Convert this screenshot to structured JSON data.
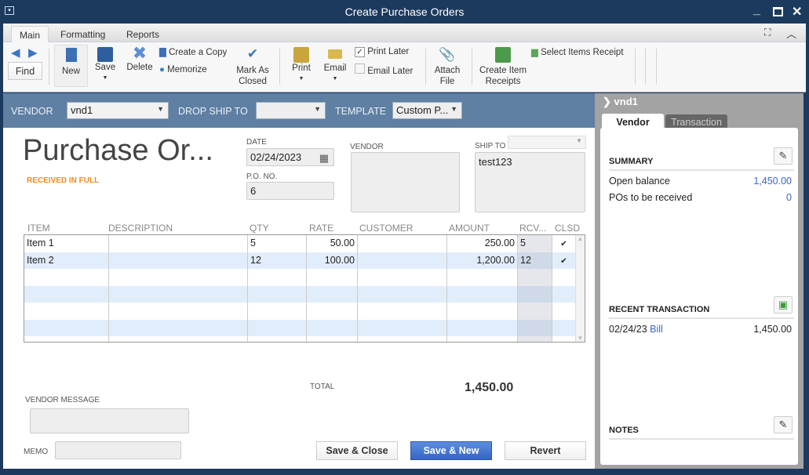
{
  "window": {
    "title": "Create Purchase Orders",
    "menu_icon": "window-menu-icon",
    "controls": [
      "minimize",
      "maximize",
      "close"
    ]
  },
  "tabs": [
    {
      "label": "Main",
      "active": true
    },
    {
      "label": "Formatting"
    },
    {
      "label": "Reports"
    }
  ],
  "toolbar": {
    "find": "Find",
    "new": "New",
    "save": "Save",
    "delete": "Delete",
    "create_copy": "Create a Copy",
    "memorize": "Memorize",
    "mark_closed_1": "Mark As",
    "mark_closed_2": "Closed",
    "print": "Print",
    "email": "Email",
    "print_later": "Print Later",
    "print_later_checked": true,
    "email_later": "Email Later",
    "email_later_checked": false,
    "attach_1": "Attach",
    "attach_2": "File",
    "create_receipts_1": "Create Item",
    "create_receipts_2": "Receipts",
    "select_items_receipt": "Select Items Receipt"
  },
  "header": {
    "vendor_label": "VENDOR",
    "vendor_value": "vnd1",
    "drop_ship_label": "DROP SHIP TO",
    "drop_ship_value": "",
    "template_label": "TEMPLATE",
    "template_value": "Custom P..."
  },
  "form": {
    "title": "Purchase Or...",
    "status": "RECEIVED IN FULL",
    "status_color": "#f08a24",
    "date_label": "DATE",
    "date": "02/24/2023",
    "po_label": "P.O. NO.",
    "po": "6",
    "vendor_label": "VENDOR",
    "vendor_address": "",
    "ship_to_label": "SHIP TO",
    "ship_to_address": "test123"
  },
  "table": {
    "columns": [
      "ITEM",
      "DESCRIPTION",
      "QTY",
      "RATE",
      "CUSTOMER",
      "AMOUNT",
      "RCV...",
      "CLSD"
    ],
    "rows": [
      {
        "item": "Item 1",
        "description": "",
        "qty": "5",
        "rate": "50.00",
        "customer": "",
        "amount": "250.00",
        "rcv": "5",
        "clsd": "✔"
      },
      {
        "item": "Item 2",
        "description": "",
        "qty": "12",
        "rate": "100.00",
        "customer": "",
        "amount": "1,200.00",
        "rcv": "12",
        "clsd": "✔"
      }
    ]
  },
  "footer": {
    "total_label": "TOTAL",
    "total": "1,450.00",
    "vendor_message_label": "VENDOR MESSAGE",
    "memo_label": "MEMO",
    "save_close": "Save & Close",
    "save_new": "Save & New",
    "revert": "Revert"
  },
  "side": {
    "vendor": "vnd1",
    "tab_vendor": "Vendor",
    "tab_transaction": "Transaction",
    "summary": "SUMMARY",
    "open_balance_label": "Open balance",
    "open_balance": "1,450.00",
    "pos_label": "POs to be received",
    "pos": "0",
    "recent": "RECENT TRANSACTION",
    "recent_date": "02/24/23",
    "recent_type": "Bill",
    "recent_amount": "1,450.00",
    "notes": "NOTES"
  }
}
